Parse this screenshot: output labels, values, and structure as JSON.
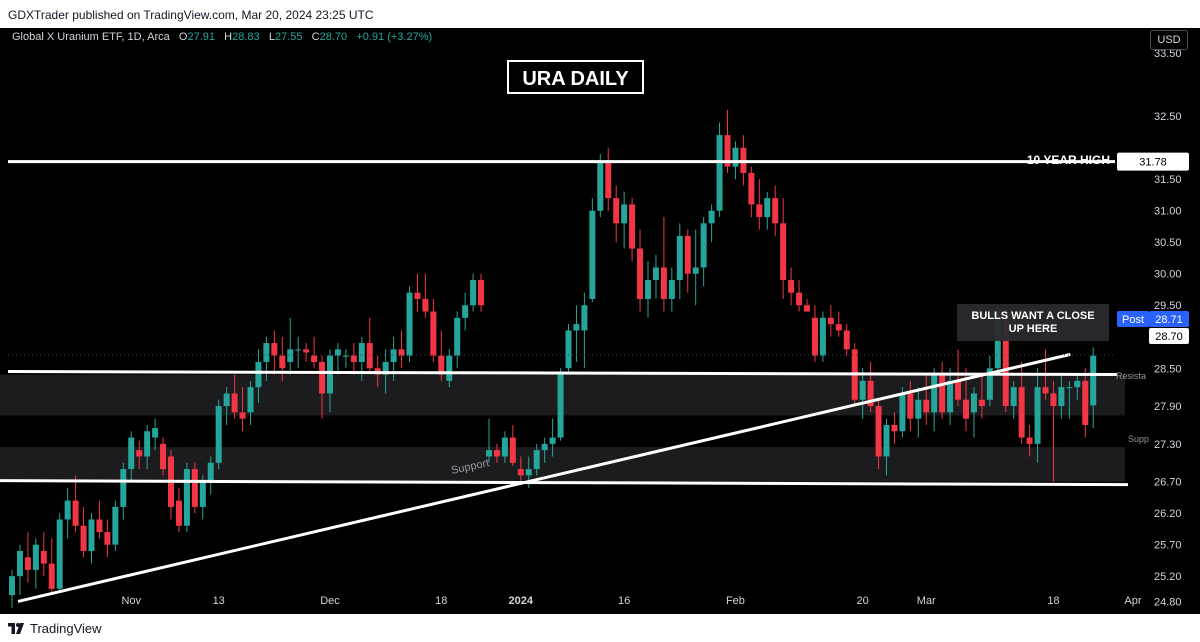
{
  "header": {
    "publisher_text": "GDXTrader published on TradingView.com, Mar 20, 2024 23:25 UTC"
  },
  "footer": {
    "brand": "TradingView"
  },
  "legend": {
    "symbol": "Global X Uranium ETF, 1D, Arca",
    "open_label": "O",
    "open": "27.91",
    "high_label": "H",
    "high": "28.83",
    "low_label": "L",
    "low": "27.55",
    "close_label": "C",
    "close": "28.70",
    "change": "+0.91 (+3.27%)"
  },
  "currency_button": "USD",
  "colors": {
    "up": "#26a69a",
    "down": "#f23645",
    "background": "#000000",
    "annotation": "#ffffff",
    "price_badge": "#2962ff"
  },
  "chart_data": {
    "type": "candlestick",
    "title": "URA DAILY",
    "y_axis": {
      "range": [
        24.6,
        33.9
      ],
      "tick_labels": [
        "33.50",
        "32.50",
        "31.78",
        "31.50",
        "31.00",
        "30.50",
        "30.00",
        "29.50",
        "28.71",
        "28.70",
        "28.50",
        "27.90",
        "27.30",
        "26.70",
        "26.20",
        "25.70",
        "25.20",
        "24.80"
      ],
      "ticks": [
        33.5,
        32.5,
        31.5,
        31.0,
        30.5,
        30.0,
        29.5,
        28.5,
        27.9,
        27.3,
        26.7,
        26.2,
        25.7,
        25.2,
        24.8
      ]
    },
    "x_axis": {
      "tick_labels": [
        {
          "label": "Nov",
          "index": 15
        },
        {
          "label": "13",
          "index": 26
        },
        {
          "label": "Dec",
          "index": 40
        },
        {
          "label": "18",
          "index": 54
        },
        {
          "label": "2024",
          "index": 64
        },
        {
          "label": "16",
          "index": 77
        },
        {
          "label": "Feb",
          "index": 91
        },
        {
          "label": "20",
          "index": 107
        },
        {
          "label": "Mar",
          "index": 115
        },
        {
          "label": "18",
          "index": 131
        },
        {
          "label": "Apr",
          "index": 141
        }
      ]
    },
    "candles": [
      [
        24.9,
        25.3,
        24.7,
        25.2
      ],
      [
        25.2,
        25.7,
        24.9,
        25.6
      ],
      [
        25.5,
        25.9,
        25.1,
        25.3
      ],
      [
        25.3,
        25.8,
        25.0,
        25.7
      ],
      [
        25.6,
        25.9,
        25.2,
        25.4
      ],
      [
        25.4,
        25.8,
        24.9,
        25.0
      ],
      [
        25.0,
        26.2,
        24.95,
        26.1
      ],
      [
        26.1,
        26.6,
        25.8,
        26.4
      ],
      [
        26.4,
        26.8,
        25.9,
        26.0
      ],
      [
        26.0,
        26.3,
        25.5,
        25.6
      ],
      [
        25.6,
        26.2,
        25.4,
        26.1
      ],
      [
        26.1,
        26.4,
        25.8,
        25.9
      ],
      [
        25.9,
        26.1,
        25.5,
        25.7
      ],
      [
        25.7,
        26.4,
        25.6,
        26.3
      ],
      [
        26.3,
        27.0,
        26.1,
        26.9
      ],
      [
        26.9,
        27.5,
        26.7,
        27.4
      ],
      [
        27.2,
        27.35,
        26.9,
        27.1
      ],
      [
        27.1,
        27.6,
        26.9,
        27.5
      ],
      [
        27.4,
        27.7,
        27.2,
        27.55
      ],
      [
        27.3,
        27.4,
        26.8,
        26.9
      ],
      [
        27.1,
        27.2,
        26.1,
        26.3
      ],
      [
        26.4,
        26.6,
        25.9,
        26.0
      ],
      [
        26.0,
        27.0,
        25.9,
        26.9
      ],
      [
        26.9,
        27.0,
        26.2,
        26.3
      ],
      [
        26.3,
        26.8,
        26.1,
        26.7
      ],
      [
        26.7,
        27.1,
        26.5,
        27.0
      ],
      [
        27.0,
        28.0,
        26.9,
        27.9
      ],
      [
        27.9,
        28.2,
        27.6,
        28.1
      ],
      [
        28.1,
        28.4,
        27.7,
        27.8
      ],
      [
        27.8,
        28.2,
        27.5,
        27.7
      ],
      [
        27.8,
        28.3,
        27.6,
        28.2
      ],
      [
        28.2,
        28.8,
        27.95,
        28.6
      ],
      [
        28.6,
        29.0,
        28.3,
        28.9
      ],
      [
        28.9,
        29.1,
        28.4,
        28.7
      ],
      [
        28.7,
        29.0,
        28.3,
        28.5
      ],
      [
        28.6,
        29.3,
        28.4,
        28.8
      ],
      [
        28.8,
        29.0,
        28.5,
        28.8
      ],
      [
        28.8,
        28.9,
        28.6,
        28.75
      ],
      [
        28.7,
        29.0,
        28.5,
        28.6
      ],
      [
        28.6,
        28.7,
        27.7,
        28.1
      ],
      [
        28.1,
        28.8,
        27.8,
        28.7
      ],
      [
        28.7,
        28.9,
        28.4,
        28.8
      ],
      [
        28.7,
        28.8,
        28.5,
        28.7
      ],
      [
        28.7,
        28.9,
        28.4,
        28.6
      ],
      [
        28.6,
        29.0,
        28.3,
        28.9
      ],
      [
        28.9,
        29.3,
        28.4,
        28.5
      ],
      [
        28.5,
        28.7,
        28.2,
        28.4
      ],
      [
        28.4,
        28.8,
        28.1,
        28.6
      ],
      [
        28.6,
        29.0,
        28.3,
        28.8
      ],
      [
        28.8,
        29.1,
        28.5,
        28.7
      ],
      [
        28.7,
        29.8,
        28.6,
        29.7
      ],
      [
        29.7,
        30.0,
        29.4,
        29.6
      ],
      [
        29.6,
        30.0,
        29.3,
        29.4
      ],
      [
        29.4,
        29.6,
        28.6,
        28.7
      ],
      [
        28.7,
        29.1,
        28.3,
        28.4
      ],
      [
        28.3,
        28.8,
        28.2,
        28.7
      ],
      [
        28.7,
        29.4,
        28.5,
        29.3
      ],
      [
        29.3,
        29.7,
        29.1,
        29.5
      ],
      [
        29.5,
        30.0,
        29.4,
        29.9
      ],
      [
        29.9,
        30.0,
        29.4,
        29.5
      ],
      [
        27.1,
        27.7,
        27.0,
        27.2
      ],
      [
        27.2,
        27.3,
        27.0,
        27.1
      ],
      [
        27.1,
        27.5,
        27.0,
        27.4
      ],
      [
        27.4,
        27.6,
        26.95,
        27.0
      ],
      [
        26.9,
        27.1,
        26.7,
        26.8
      ],
      [
        26.8,
        27.1,
        26.6,
        26.9
      ],
      [
        26.9,
        27.3,
        26.8,
        27.2
      ],
      [
        27.2,
        27.4,
        27.0,
        27.3
      ],
      [
        27.3,
        27.7,
        27.1,
        27.4
      ],
      [
        27.4,
        28.5,
        27.35,
        28.4
      ],
      [
        28.5,
        29.2,
        28.4,
        29.1
      ],
      [
        29.1,
        29.5,
        28.6,
        29.2
      ],
      [
        29.1,
        29.7,
        28.5,
        29.5
      ],
      [
        29.6,
        31.2,
        29.55,
        31.0
      ],
      [
        31.0,
        31.9,
        30.9,
        31.8
      ],
      [
        31.8,
        32.0,
        31.0,
        31.2
      ],
      [
        31.2,
        31.4,
        30.5,
        30.8
      ],
      [
        30.8,
        31.3,
        30.4,
        31.1
      ],
      [
        31.1,
        31.2,
        30.2,
        30.4
      ],
      [
        30.4,
        30.7,
        29.4,
        29.6
      ],
      [
        29.6,
        30.2,
        29.3,
        29.9
      ],
      [
        29.9,
        30.3,
        29.6,
        30.1
      ],
      [
        30.1,
        30.9,
        29.4,
        29.6
      ],
      [
        29.6,
        30.1,
        29.4,
        29.9
      ],
      [
        29.9,
        30.8,
        29.6,
        30.6
      ],
      [
        30.6,
        30.7,
        29.7,
        30.0
      ],
      [
        30.0,
        30.7,
        29.5,
        30.1
      ],
      [
        30.1,
        30.9,
        29.8,
        30.8
      ],
      [
        30.8,
        31.1,
        30.5,
        31.0
      ],
      [
        31.0,
        32.4,
        30.9,
        32.2
      ],
      [
        32.2,
        32.6,
        31.6,
        31.7
      ],
      [
        31.7,
        32.1,
        31.5,
        32.0
      ],
      [
        32.0,
        32.2,
        31.4,
        31.6
      ],
      [
        31.6,
        31.7,
        30.9,
        31.1
      ],
      [
        31.1,
        31.5,
        30.7,
        30.9
      ],
      [
        30.9,
        31.3,
        30.7,
        31.2
      ],
      [
        31.2,
        31.4,
        30.6,
        30.8
      ],
      [
        30.8,
        31.2,
        29.6,
        29.9
      ],
      [
        29.9,
        30.1,
        29.5,
        29.7
      ],
      [
        29.7,
        29.9,
        29.4,
        29.5
      ],
      [
        29.5,
        29.6,
        29.4,
        29.4
      ],
      [
        29.3,
        29.5,
        28.6,
        28.7
      ],
      [
        28.7,
        29.4,
        28.6,
        29.3
      ],
      [
        29.3,
        29.5,
        29.0,
        29.2
      ],
      [
        29.2,
        29.4,
        29.0,
        29.1
      ],
      [
        29.1,
        29.2,
        28.7,
        28.8
      ],
      [
        28.8,
        28.9,
        27.9,
        28.0
      ],
      [
        28.0,
        28.5,
        27.7,
        28.3
      ],
      [
        28.3,
        28.6,
        27.8,
        27.9
      ],
      [
        27.9,
        28.0,
        26.9,
        27.1
      ],
      [
        27.1,
        27.7,
        26.8,
        27.6
      ],
      [
        27.6,
        27.8,
        27.3,
        27.5
      ],
      [
        27.5,
        28.2,
        27.4,
        28.1
      ],
      [
        28.1,
        28.3,
        27.5,
        27.7
      ],
      [
        27.7,
        28.2,
        27.4,
        28.0
      ],
      [
        28.0,
        28.4,
        27.6,
        27.8
      ],
      [
        27.8,
        28.5,
        27.5,
        28.4
      ],
      [
        28.4,
        28.6,
        27.7,
        27.8
      ],
      [
        27.8,
        28.5,
        27.6,
        28.3
      ],
      [
        28.3,
        28.8,
        27.9,
        28.0
      ],
      [
        28.0,
        28.5,
        27.5,
        27.7
      ],
      [
        27.8,
        28.2,
        27.4,
        28.1
      ],
      [
        28.0,
        28.4,
        27.7,
        27.9
      ],
      [
        28.0,
        28.7,
        27.9,
        28.5
      ],
      [
        28.5,
        29.5,
        28.4,
        29.4
      ],
      [
        29.4,
        29.5,
        27.8,
        27.9
      ],
      [
        27.9,
        28.3,
        27.7,
        28.2
      ],
      [
        28.2,
        28.6,
        27.3,
        27.4
      ],
      [
        27.4,
        27.6,
        27.1,
        27.3
      ],
      [
        27.3,
        28.5,
        27.0,
        28.2
      ],
      [
        28.2,
        28.8,
        28.0,
        28.1
      ],
      [
        28.1,
        28.3,
        26.7,
        27.9
      ],
      [
        27.9,
        28.4,
        27.7,
        28.2
      ],
      [
        28.2,
        28.3,
        27.7,
        28.2
      ],
      [
        28.2,
        28.4,
        28.0,
        28.3
      ],
      [
        28.3,
        28.5,
        27.4,
        27.6
      ],
      [
        27.91,
        28.83,
        27.55,
        28.7
      ]
    ],
    "annotations": [
      {
        "type": "hline",
        "label": "10 YEAR HIGH",
        "value": 31.78
      },
      {
        "type": "hline",
        "label": "Resistance",
        "value": 28.4
      },
      {
        "type": "zone",
        "label": "Resistance",
        "from": 27.75,
        "to": 28.4
      },
      {
        "type": "zone",
        "label": "Support",
        "from": 26.7,
        "to": 27.25
      },
      {
        "type": "line",
        "label": "Support",
        "from": {
          "index": 0,
          "price": 24.8
        },
        "to": {
          "index": 133,
          "price": 28.72
        }
      },
      {
        "type": "hline",
        "label": "Support",
        "value": 26.7
      },
      {
        "type": "callout",
        "text": "BULLS WANT A CLOSE UP HERE"
      }
    ],
    "price_labels": {
      "post_label": "Post",
      "post_price": "28.71",
      "last_price": "28.70",
      "ten_year_high": "31.78"
    },
    "zone_labels": {
      "resistance": "Resista",
      "support": "Supp"
    }
  }
}
